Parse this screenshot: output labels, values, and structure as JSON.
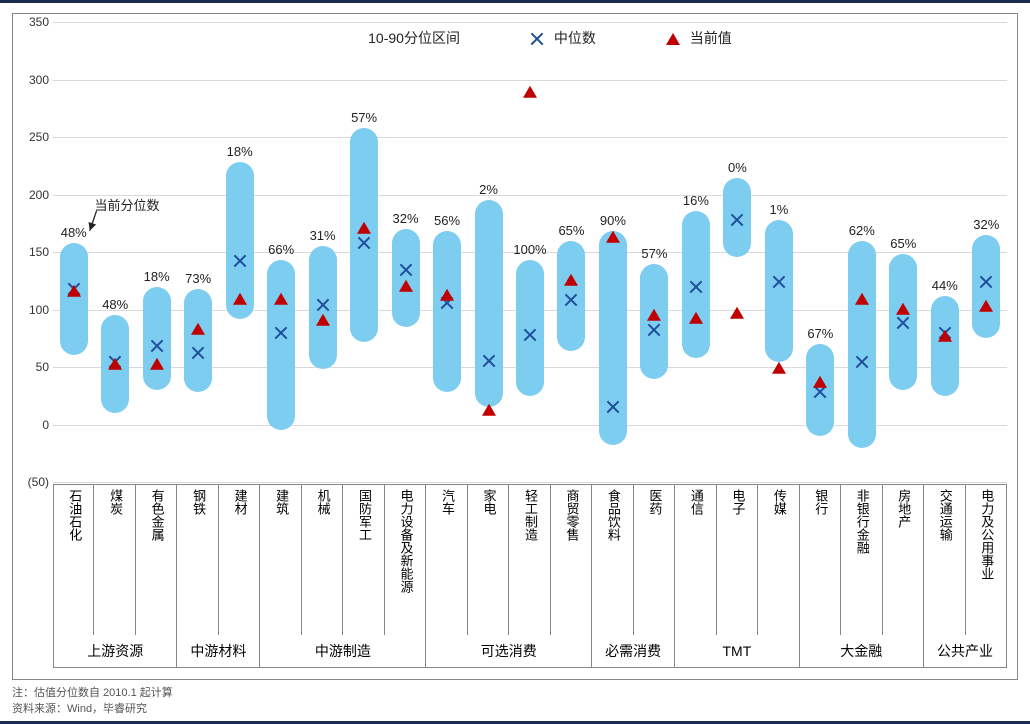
{
  "chart": {
    "type": "floating-bar-with-markers",
    "y_axis": {
      "min": -50,
      "max": 350,
      "tick_step": 50,
      "neg_paren": true
    },
    "colors": {
      "bar_fill": "#7dcdf0",
      "median_x": "#1f4e9c",
      "current_tri": "#c00000",
      "grid": "#d9d9d9",
      "frame": "#868686",
      "outer_rule": "#1a2c50",
      "text": "#222222"
    },
    "legend": {
      "range_label": "10-90分位区间",
      "median_label": "中位数",
      "current_label": "当前值"
    },
    "annotation_label": "当前分位数",
    "groups": [
      {
        "label": "上游资源",
        "start": 0,
        "end": 3
      },
      {
        "label": "中游材料",
        "start": 3,
        "end": 5
      },
      {
        "label": "中游制造",
        "start": 5,
        "end": 9
      },
      {
        "label": "可选消费",
        "start": 9,
        "end": 13
      },
      {
        "label": "必需消费",
        "start": 13,
        "end": 15
      },
      {
        "label": "TMT",
        "start": 15,
        "end": 18
      },
      {
        "label": "大金融",
        "start": 18,
        "end": 21
      },
      {
        "label": "公共产业",
        "start": 21,
        "end": 23
      }
    ],
    "series": [
      {
        "label": "石油石化",
        "low": 60,
        "high": 158,
        "median": 118,
        "current": 115,
        "pct": "48%"
      },
      {
        "label": "煤炭",
        "low": 10,
        "high": 95,
        "median": 54,
        "current": 52,
        "pct": "48%"
      },
      {
        "label": "有色金属",
        "low": 30,
        "high": 120,
        "median": 68,
        "current": 52,
        "pct": "18%"
      },
      {
        "label": "钢铁",
        "low": 28,
        "high": 118,
        "median": 62,
        "current": 82,
        "pct": "73%"
      },
      {
        "label": "建材",
        "low": 92,
        "high": 228,
        "median": 142,
        "current": 108,
        "pct": "18%"
      },
      {
        "label": "建筑",
        "low": -5,
        "high": 143,
        "median": 80,
        "current": 108,
        "pct": "66%"
      },
      {
        "label": "机械",
        "low": 48,
        "high": 155,
        "median": 104,
        "current": 90,
        "pct": "31%"
      },
      {
        "label": "国防军工",
        "low": 72,
        "high": 258,
        "median": 158,
        "current": 170,
        "pct": "57%"
      },
      {
        "label": "电力设备及新能源",
        "low": 85,
        "high": 170,
        "median": 134,
        "current": 120,
        "pct": "32%"
      },
      {
        "label": "汽车",
        "low": 28,
        "high": 168,
        "median": 106,
        "current": 112,
        "pct": "56%"
      },
      {
        "label": "家电",
        "low": 15,
        "high": 195,
        "median": 55,
        "current": 12,
        "pct": "2%"
      },
      {
        "label": "轻工制造",
        "low": 25,
        "high": 143,
        "median": 78,
        "current": 288,
        "pct": "100%"
      },
      {
        "label": "商贸零售",
        "low": 64,
        "high": 160,
        "median": 108,
        "current": 125,
        "pct": "65%"
      },
      {
        "label": "食品饮料",
        "low": -18,
        "high": 168,
        "median": 15,
        "current": 162,
        "pct": "90%"
      },
      {
        "label": "医药",
        "low": 40,
        "high": 140,
        "median": 82,
        "current": 94,
        "pct": "57%"
      },
      {
        "label": "通信",
        "low": 58,
        "high": 186,
        "median": 120,
        "current": 92,
        "pct": "16%"
      },
      {
        "label": "电子",
        "low": 146,
        "high": 214,
        "median": 178,
        "current": 96,
        "pct": "0%"
      },
      {
        "label": "传媒",
        "low": 54,
        "high": 178,
        "median": 124,
        "current": 48,
        "pct": "1%"
      },
      {
        "label": "银行",
        "low": -10,
        "high": 70,
        "median": 28,
        "current": 36,
        "pct": "67%"
      },
      {
        "label": "非银行金融",
        "low": -20,
        "high": 160,
        "median": 54,
        "current": 108,
        "pct": "62%"
      },
      {
        "label": "房地产",
        "low": 30,
        "high": 148,
        "median": 88,
        "current": 100,
        "pct": "65%"
      },
      {
        "label": "交通运输",
        "low": 25,
        "high": 112,
        "median": 80,
        "current": 76,
        "pct": "44%"
      },
      {
        "label": "电力及公用事业",
        "low": 75,
        "high": 165,
        "median": 124,
        "current": 102,
        "pct": "32%"
      }
    ]
  },
  "footnotes": {
    "line1": "注：估值分位数自 2010.1 起计算",
    "line2": "资料来源：Wind，毕睿研究"
  }
}
